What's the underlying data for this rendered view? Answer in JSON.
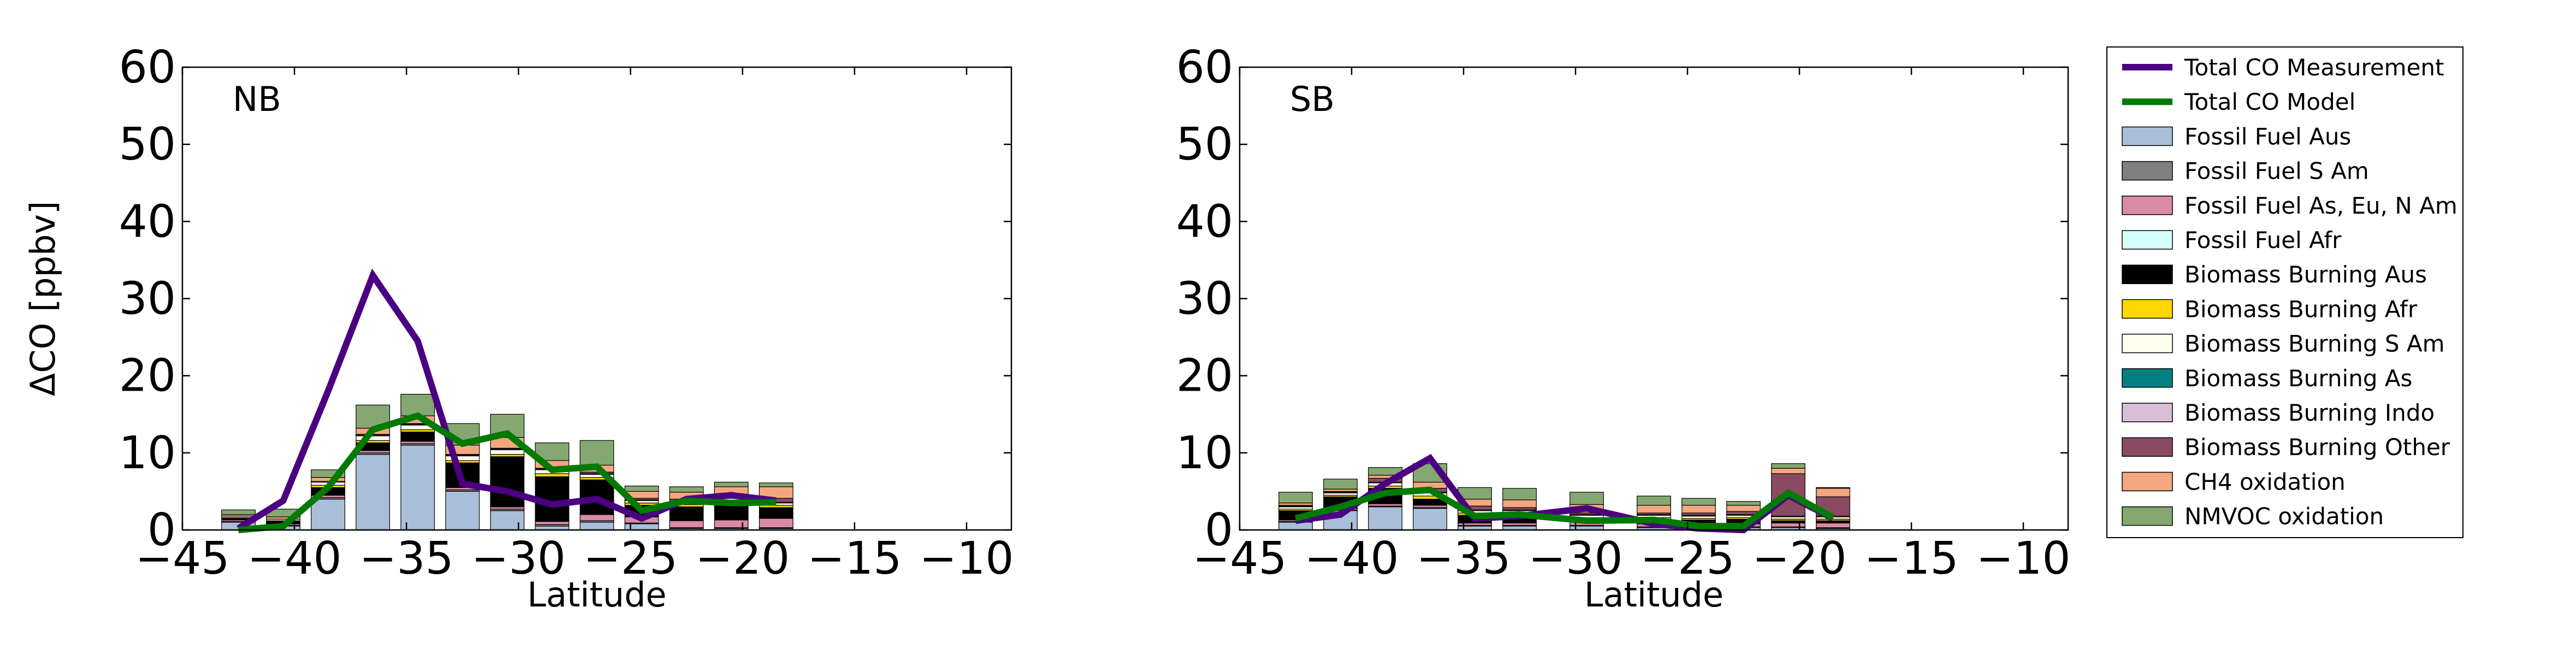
{
  "legend": [
    {
      "key": "measurement",
      "label": "Total CO Measurement",
      "kind": "line",
      "color": "#4b0082"
    },
    {
      "key": "model",
      "label": "Total CO Model",
      "kind": "line",
      "color": "#007a00"
    },
    {
      "key": "ff_aus",
      "label": "Fossil Fuel Aus",
      "kind": "bar",
      "color": "#a9bfd9"
    },
    {
      "key": "ff_sam",
      "label": "Fossil Fuel S Am",
      "kind": "bar",
      "color": "#808080"
    },
    {
      "key": "ff_asia",
      "label": "Fossil Fuel As, Eu, N Am",
      "kind": "bar",
      "color": "#d98aa5"
    },
    {
      "key": "ff_afr",
      "label": "Fossil Fuel Afr",
      "kind": "bar",
      "color": "#d4fdfd"
    },
    {
      "key": "bb_aus",
      "label": "Biomass Burning Aus",
      "kind": "bar",
      "color": "#000000"
    },
    {
      "key": "bb_afr",
      "label": "Biomass Burning Afr",
      "kind": "bar",
      "color": "#ffd700"
    },
    {
      "key": "bb_sam",
      "label": "Biomass Burning S Am",
      "kind": "bar",
      "color": "#fffff0"
    },
    {
      "key": "bb_as",
      "label": "Biomass Burning As",
      "kind": "bar",
      "color": "#008080"
    },
    {
      "key": "bb_indo",
      "label": "Biomass Burning Indo",
      "kind": "bar",
      "color": "#d8bfd8"
    },
    {
      "key": "bb_other",
      "label": "Biomass Burning Other",
      "kind": "bar",
      "color": "#8b4a64"
    },
    {
      "key": "ch4",
      "label": "CH4 oxidation",
      "kind": "bar",
      "color": "#f4a77f"
    },
    {
      "key": "nmvoc",
      "label": "NMVOC oxidation",
      "kind": "bar",
      "color": "#85a872"
    }
  ],
  "chart_data": [
    {
      "type": "bar",
      "title": "NB",
      "xlabel": "Latitude",
      "ylabel": "ΔCO [ppbv]",
      "xlim": [
        -45,
        -8
      ],
      "ylim": [
        0,
        60
      ],
      "xticks": [
        -45,
        -40,
        -35,
        -30,
        -25,
        -20,
        -15,
        -10
      ],
      "xtick_labels": [
        "−45",
        "−40",
        "−35",
        "−30",
        "−25",
        "−20",
        "−15",
        "−10"
      ],
      "yticks": [
        0,
        10,
        20,
        30,
        40,
        50,
        60
      ],
      "ytick_labels": [
        "0",
        "10",
        "20",
        "30",
        "40",
        "50",
        "60"
      ],
      "bar_width": 1.5,
      "x": [
        -42.5,
        -40.5,
        -38.5,
        -36.5,
        -34.5,
        -32.5,
        -30.5,
        -28.5,
        -26.5,
        -24.5,
        -22.5,
        -20.5,
        -18.5
      ],
      "series": [
        {
          "name": "Fossil Fuel Aus",
          "values": [
            1.0,
            0.5,
            4.0,
            9.8,
            11.0,
            5.0,
            2.5,
            0.5,
            1.0,
            0.8,
            0.2,
            0.2,
            0.2
          ]
        },
        {
          "name": "Fossil Fuel S Am",
          "values": [
            0.1,
            0.1,
            0.2,
            0.2,
            0.2,
            0.2,
            0.2,
            0.2,
            0.2,
            0.1,
            0.1,
            0.1,
            0.1
          ]
        },
        {
          "name": "Fossil Fuel As, Eu, N Am",
          "values": [
            0.2,
            0.2,
            0.3,
            0.3,
            0.3,
            0.3,
            0.3,
            0.4,
            0.8,
            0.8,
            0.9,
            1.0,
            1.2
          ]
        },
        {
          "name": "Fossil Fuel Afr",
          "values": [
            0.0,
            0.0,
            0.0,
            0.0,
            0.0,
            0.0,
            0.0,
            0.0,
            0.0,
            0.0,
            0.0,
            0.0,
            0.0
          ]
        },
        {
          "name": "Biomass Burning Aus",
          "values": [
            0.2,
            0.3,
            1.0,
            1.0,
            1.2,
            3.2,
            6.5,
            5.8,
            4.5,
            1.5,
            1.8,
            2.2,
            1.4
          ]
        },
        {
          "name": "Biomass Burning Afr",
          "values": [
            0.1,
            0.1,
            0.3,
            0.3,
            0.3,
            0.3,
            0.3,
            0.4,
            0.3,
            0.3,
            0.3,
            0.3,
            0.3
          ]
        },
        {
          "name": "Biomass Burning S Am",
          "values": [
            0.2,
            0.2,
            0.4,
            0.6,
            0.6,
            0.6,
            0.6,
            0.5,
            0.4,
            0.3,
            0.3,
            0.3,
            0.3
          ]
        },
        {
          "name": "Biomass Burning As",
          "values": [
            0.0,
            0.0,
            0.0,
            0.0,
            0.0,
            0.0,
            0.0,
            0.0,
            0.0,
            0.0,
            0.0,
            0.0,
            0.0
          ]
        },
        {
          "name": "Biomass Burning Indo",
          "values": [
            0.0,
            0.0,
            0.1,
            0.1,
            0.1,
            0.1,
            0.1,
            0.1,
            0.1,
            0.1,
            0.1,
            0.1,
            0.1
          ]
        },
        {
          "name": "Biomass Burning Other",
          "values": [
            0.0,
            0.0,
            0.0,
            0.1,
            0.1,
            0.1,
            0.1,
            0.1,
            0.2,
            0.2,
            0.3,
            0.4,
            0.5
          ]
        },
        {
          "name": "CH4 oxidation",
          "values": [
            0.2,
            0.3,
            0.5,
            0.8,
            1.0,
            1.2,
            1.4,
            1.0,
            0.9,
            0.9,
            0.9,
            1.0,
            1.5
          ]
        },
        {
          "name": "NMVOC oxidation",
          "values": [
            0.6,
            1.0,
            1.0,
            3.0,
            2.8,
            2.8,
            3.0,
            2.3,
            3.2,
            0.7,
            0.7,
            0.6,
            0.5
          ]
        }
      ],
      "lines": [
        {
          "name": "Total CO Measurement",
          "x": [
            -42.5,
            -40.5,
            -38.5,
            -36.5,
            -34.5,
            -32.5,
            -30.5,
            -28.5,
            -26.5,
            -24.5,
            -22.5,
            -20.5,
            -18.5
          ],
          "values": [
            0.2,
            3.8,
            18.0,
            33.0,
            24.5,
            6.0,
            5.0,
            3.3,
            4.0,
            1.5,
            4.0,
            4.5,
            3.8
          ]
        },
        {
          "name": "Total CO Model",
          "x": [
            -42.5,
            -40.5,
            -38.5,
            -36.5,
            -34.5,
            -32.5,
            -30.5,
            -28.5,
            -26.5,
            -24.5,
            -22.5,
            -20.5,
            -18.5
          ],
          "values": [
            0.0,
            0.5,
            5.5,
            13.0,
            14.8,
            11.2,
            12.5,
            7.8,
            8.2,
            2.5,
            3.8,
            3.5,
            3.6
          ]
        }
      ]
    },
    {
      "type": "bar",
      "title": "SB",
      "xlabel": "Latitude",
      "ylabel": "",
      "xlim": [
        -45,
        -8
      ],
      "ylim": [
        0,
        60
      ],
      "xticks": [
        -45,
        -40,
        -35,
        -30,
        -25,
        -20,
        -15,
        -10
      ],
      "xtick_labels": [
        "−45",
        "−40",
        "−35",
        "−30",
        "−25",
        "−20",
        "−15",
        "−10"
      ],
      "yticks": [
        0,
        10,
        20,
        30,
        40,
        50,
        60
      ],
      "ytick_labels": [
        "0",
        "10",
        "20",
        "30",
        "40",
        "50",
        "60"
      ],
      "bar_width": 1.5,
      "x": [
        -42.5,
        -40.5,
        -38.5,
        -36.5,
        -34.5,
        -32.5,
        -29.5,
        -26.5,
        -24.5,
        -22.5,
        -20.5,
        -18.5
      ],
      "series": [
        {
          "name": "Fossil Fuel Aus",
          "values": [
            1.0,
            2.5,
            3.0,
            2.8,
            0.5,
            0.5,
            0.5,
            0.3,
            0.3,
            0.3,
            0.3,
            0.2
          ]
        },
        {
          "name": "Fossil Fuel S Am",
          "values": [
            0.1,
            0.1,
            0.1,
            0.1,
            0.1,
            0.1,
            0.1,
            0.1,
            0.1,
            0.1,
            0.1,
            0.1
          ]
        },
        {
          "name": "Fossil Fuel As, Eu, N Am",
          "values": [
            0.2,
            0.2,
            0.3,
            0.3,
            0.3,
            0.3,
            0.4,
            0.4,
            0.4,
            0.4,
            0.5,
            0.6
          ]
        },
        {
          "name": "Fossil Fuel Afr",
          "values": [
            0.0,
            0.0,
            0.0,
            0.0,
            0.0,
            0.0,
            0.0,
            0.0,
            0.0,
            0.0,
            0.0,
            0.0
          ]
        },
        {
          "name": "Biomass Burning Aus",
          "values": [
            1.2,
            1.5,
            2.0,
            0.8,
            1.0,
            1.0,
            0.4,
            0.6,
            0.5,
            0.6,
            0.3,
            0.3
          ]
        },
        {
          "name": "Biomass Burning Afr",
          "values": [
            0.2,
            0.2,
            0.3,
            0.4,
            0.3,
            0.3,
            0.2,
            0.2,
            0.2,
            0.2,
            0.2,
            0.2
          ]
        },
        {
          "name": "Biomass Burning S Am",
          "values": [
            0.3,
            0.3,
            0.4,
            0.4,
            0.3,
            0.3,
            0.3,
            0.3,
            0.3,
            0.3,
            0.3,
            0.3
          ]
        },
        {
          "name": "Biomass Burning As",
          "values": [
            0.0,
            0.0,
            0.0,
            0.0,
            0.0,
            0.0,
            0.0,
            0.0,
            0.0,
            0.0,
            0.0,
            0.0
          ]
        },
        {
          "name": "Biomass Burning Indo",
          "values": [
            0.1,
            0.1,
            0.1,
            0.1,
            0.1,
            0.1,
            0.1,
            0.1,
            0.1,
            0.1,
            0.1,
            0.1
          ]
        },
        {
          "name": "Biomass Burning Other",
          "values": [
            0.1,
            0.1,
            0.5,
            0.5,
            0.5,
            0.3,
            0.2,
            0.2,
            0.3,
            0.4,
            5.5,
            2.5
          ]
        },
        {
          "name": "CH4 oxidation",
          "values": [
            0.3,
            0.3,
            0.4,
            0.8,
            0.9,
            1.0,
            1.1,
            1.0,
            1.0,
            0.8,
            0.7,
            1.1
          ]
        },
        {
          "name": "NMVOC oxidation",
          "values": [
            1.4,
            1.3,
            1.0,
            2.4,
            1.5,
            1.5,
            1.6,
            1.2,
            0.9,
            0.5,
            0.6,
            0.1
          ]
        }
      ],
      "lines": [
        {
          "name": "Total CO Measurement",
          "x": [
            -42.5,
            -40.5,
            -38.5,
            -36.5,
            -34.5,
            -32.5,
            -29.5,
            -26.5,
            -24.5,
            -22.5,
            -20.5,
            -18.5
          ],
          "values": [
            1.2,
            2.0,
            6.0,
            9.3,
            1.5,
            1.8,
            2.8,
            0.8,
            0.2,
            0.0,
            4.5,
            1.5
          ]
        },
        {
          "name": "Total CO Model",
          "x": [
            -42.5,
            -40.5,
            -38.5,
            -36.5,
            -34.5,
            -32.5,
            -29.5,
            -26.5,
            -24.5,
            -22.5,
            -20.5,
            -18.5
          ],
          "values": [
            1.5,
            3.0,
            4.8,
            5.2,
            1.8,
            2.0,
            1.2,
            1.3,
            0.5,
            0.5,
            4.8,
            1.6
          ]
        }
      ]
    }
  ]
}
